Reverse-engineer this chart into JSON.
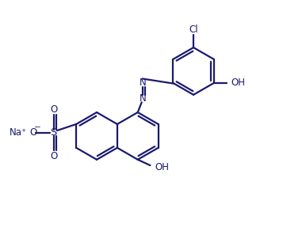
{
  "line_color": "#1a1a6e",
  "line_width": 1.6,
  "font_size": 8.5,
  "fig_width": 3.57,
  "fig_height": 3.11,
  "dpi": 100,
  "xlim": [
    0,
    9.5
  ],
  "ylim": [
    0,
    8.5
  ]
}
